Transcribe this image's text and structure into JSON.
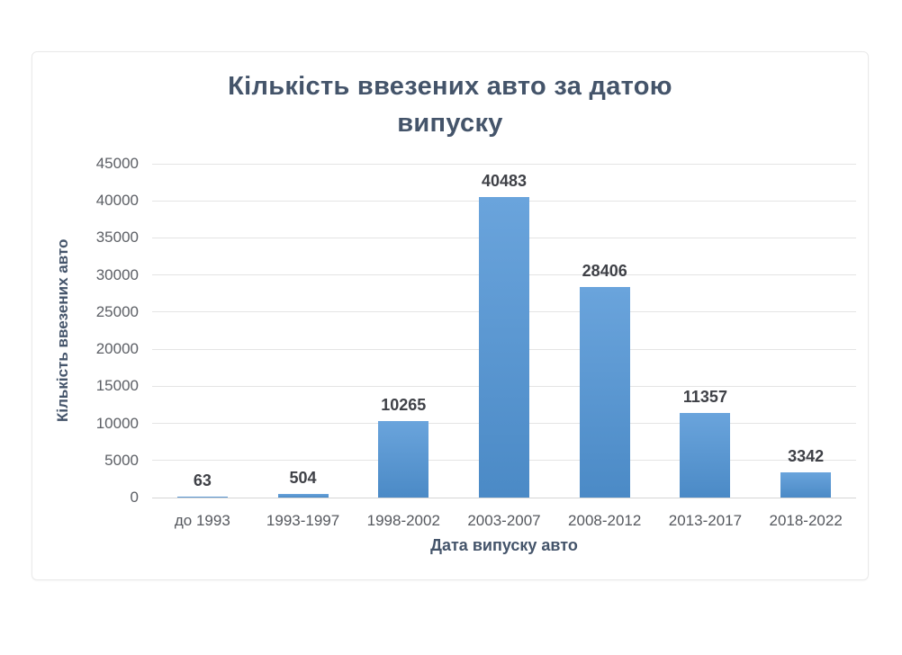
{
  "page": {
    "background": "#ffffff"
  },
  "card": {
    "background": "#ffffff",
    "border_color": "#e9e9e9"
  },
  "chart_data": {
    "type": "bar",
    "title": "Кількість ввезених авто за датою випуску",
    "title_lines": [
      "Кількість ввезених авто за датою",
      "випуску"
    ],
    "xlabel": "Дата випуску авто",
    "ylabel": "Кількість ввезених авто",
    "categories": [
      "до 1993",
      "1993-1997",
      "1998-2002",
      "2003-2007",
      "2008-2012",
      "2013-2017",
      "2018-2022"
    ],
    "values": [
      63,
      504,
      10265,
      40483,
      28406,
      11357,
      3342
    ],
    "value_labels": [
      "63",
      "504",
      "10265",
      "40483",
      "28406",
      "11357",
      "3342"
    ],
    "ylim": [
      0,
      45000
    ],
    "ytick_step": 5000,
    "ytick_labels": [
      "0",
      "5000",
      "10000",
      "15000",
      "20000",
      "25000",
      "30000",
      "35000",
      "40000",
      "45000"
    ],
    "grid": "horizontal",
    "legend": "none",
    "colors": {
      "bar_top": "#6aa4dc",
      "bar_bottom": "#4b8ac6",
      "title": "#44546a",
      "axis_title": "#44546a",
      "ytick_text": "#5c5f65",
      "xtick_text": "#55585e",
      "value_label": "#3f4147",
      "gridline": "#e4e4e4",
      "axisline": "#d5d5d5"
    }
  }
}
